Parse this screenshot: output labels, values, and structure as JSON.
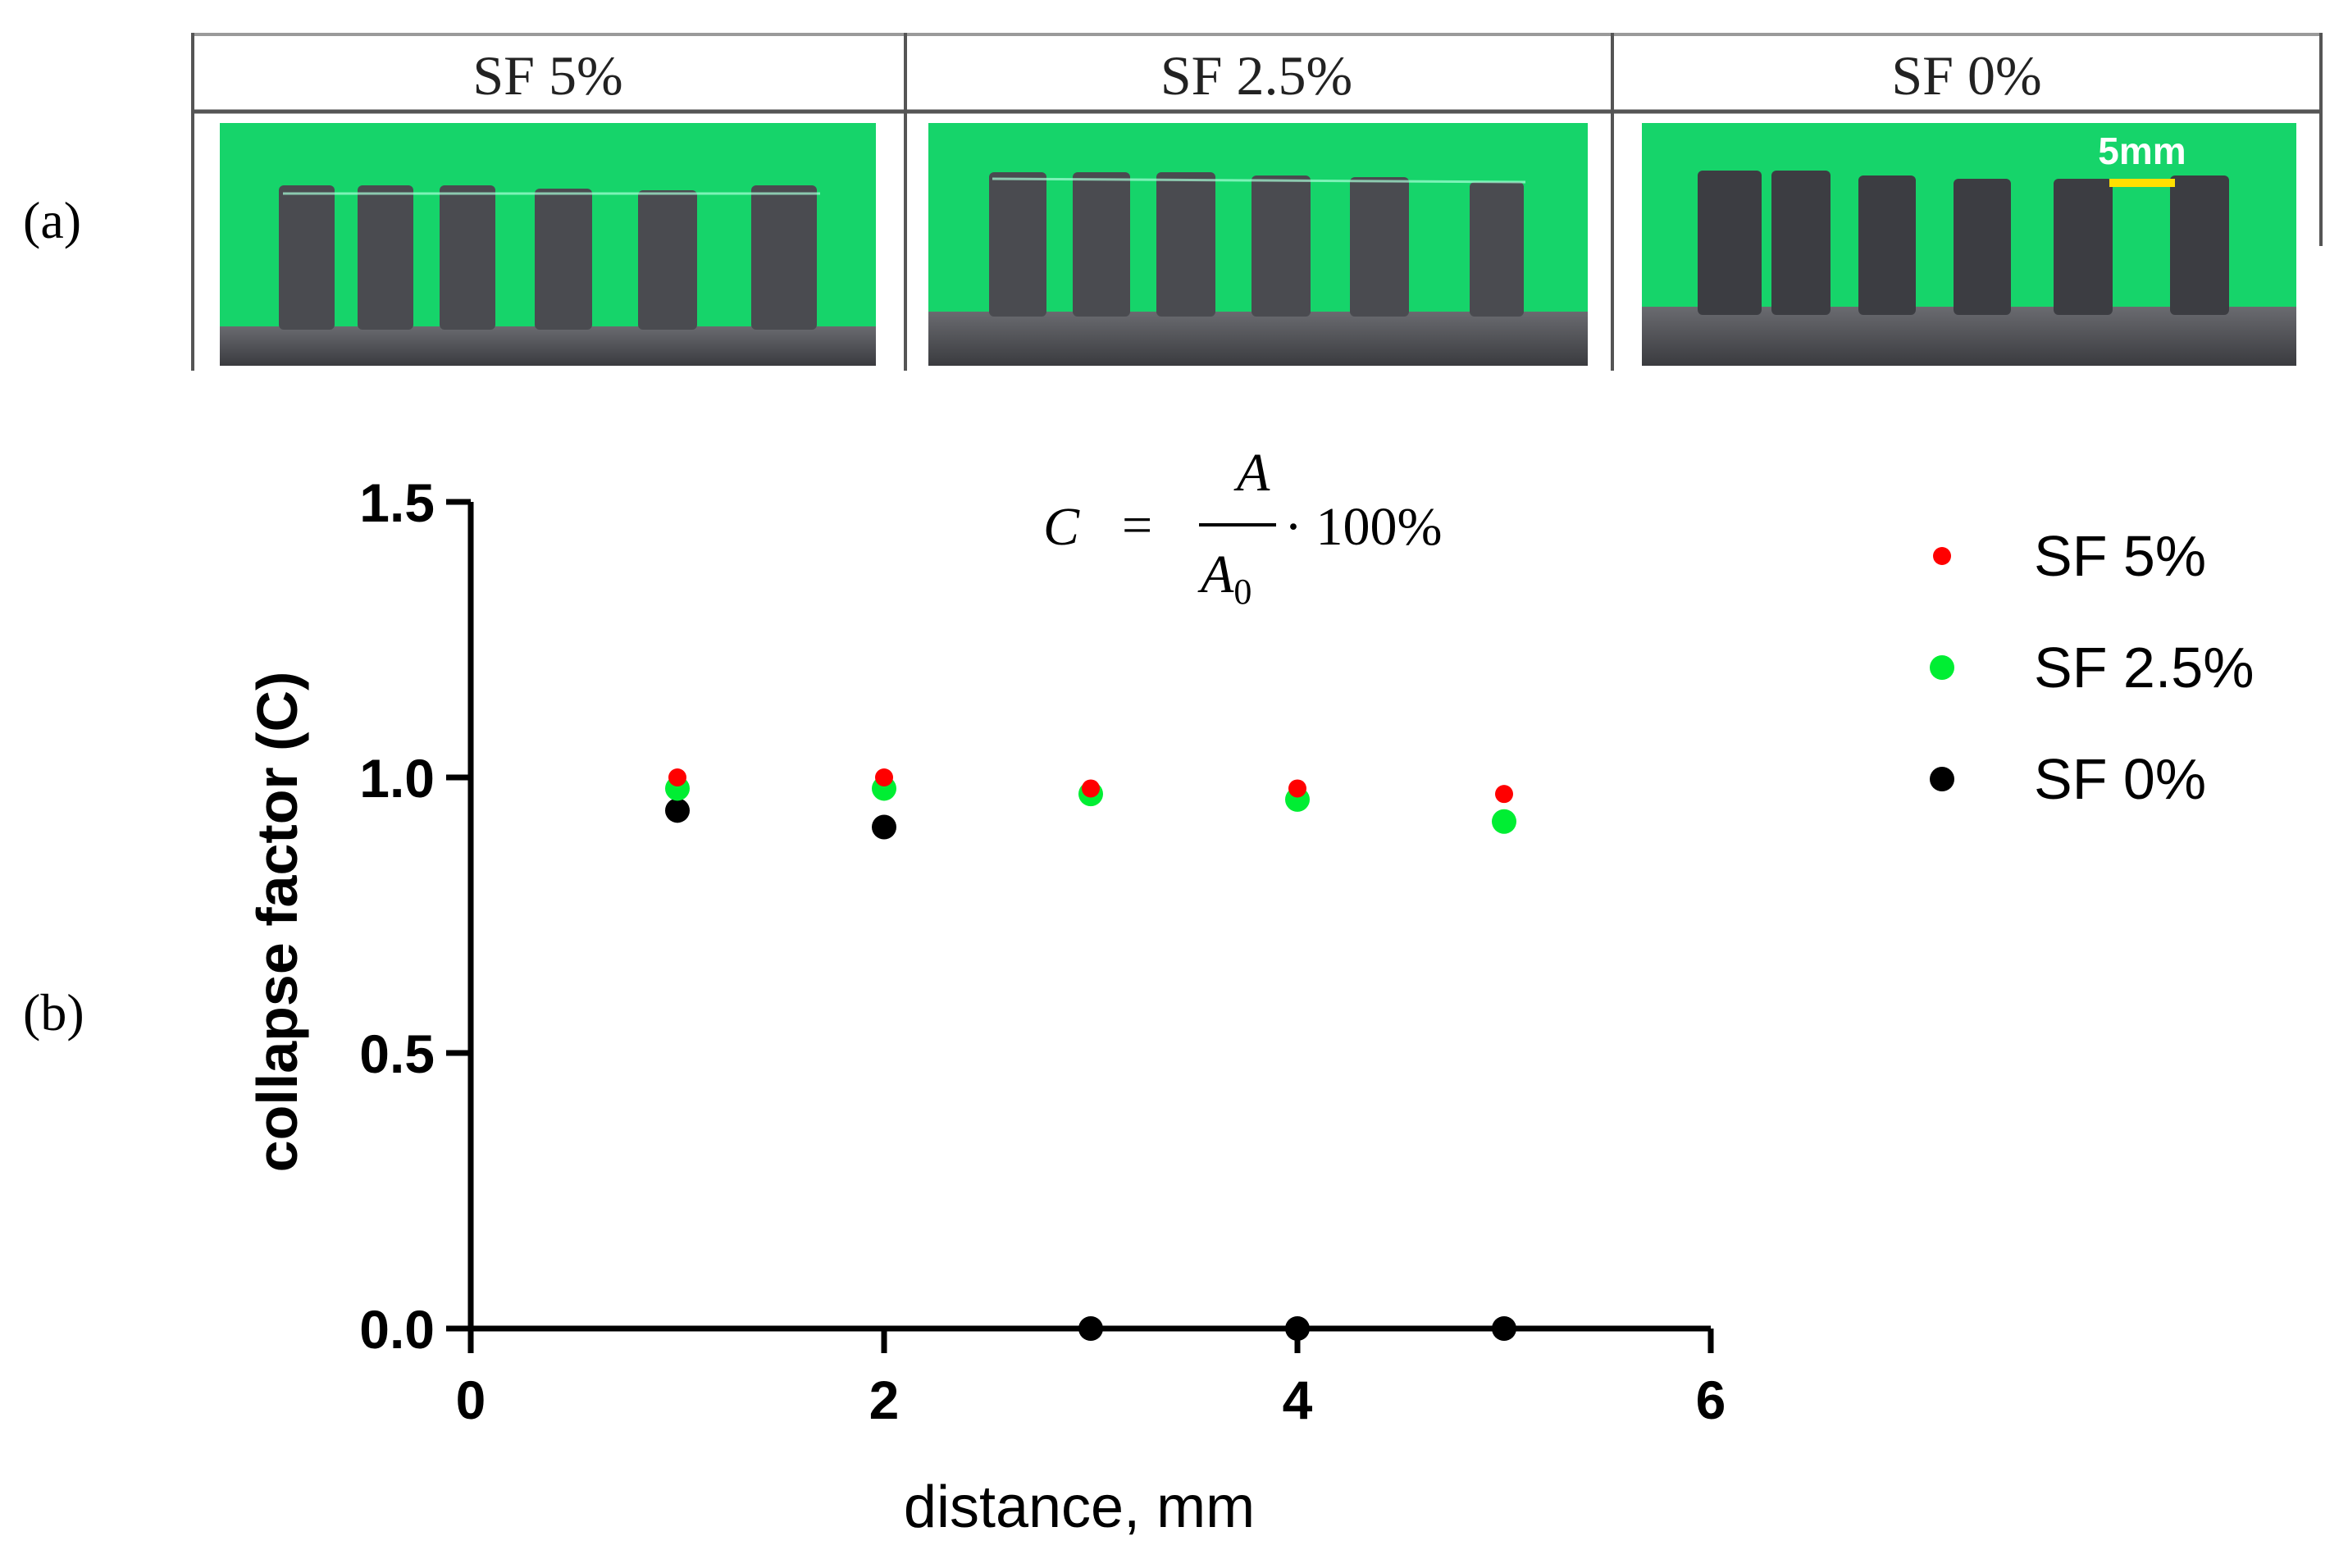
{
  "panel_labels": {
    "a": "(a)",
    "b": "(b)"
  },
  "photos": {
    "scale_bar_label": "5mm",
    "columns": [
      {
        "header": "SF 5%"
      },
      {
        "header": "SF 2.5%"
      },
      {
        "header": "SF 0%"
      }
    ]
  },
  "formula": {
    "lhs": "C",
    "equals": "=",
    "numerator": "A",
    "denominator": "A",
    "denominator_subscript": "0",
    "suffix": "· 100%"
  },
  "colors": {
    "sf5": "#ff0000",
    "sf25": "#00ee33",
    "sf0": "#000000",
    "photo_green": "#16d46a",
    "sample_gray": "#4a4b50",
    "scale_bar": "#ffe000"
  },
  "chart_data": {
    "type": "scatter",
    "title": "",
    "xlabel": "distance, mm",
    "ylabel": "collapse factor (C)",
    "xlim": [
      0,
      6
    ],
    "ylim": [
      0,
      1.5
    ],
    "x_ticks": [
      "0",
      "2",
      "4",
      "6"
    ],
    "y_ticks": [
      "0.0",
      "0.5",
      "1.0",
      "1.5"
    ],
    "legend_position": "top-right outside",
    "series": [
      {
        "name": "SF 5%",
        "color": "#ff0000",
        "x": [
          1,
          2,
          3,
          4,
          5
        ],
        "y": [
          1.0,
          1.0,
          0.98,
          0.98,
          0.97
        ]
      },
      {
        "name": "SF 2.5%",
        "color": "#00ee33",
        "x": [
          1,
          2,
          3,
          4,
          5
        ],
        "y": [
          0.98,
          0.98,
          0.97,
          0.96,
          0.92
        ]
      },
      {
        "name": "SF 0%",
        "color": "#000000",
        "x": [
          1,
          2,
          3,
          4,
          5
        ],
        "y": [
          0.94,
          0.91,
          0.0,
          0.0,
          0.0
        ]
      }
    ]
  }
}
